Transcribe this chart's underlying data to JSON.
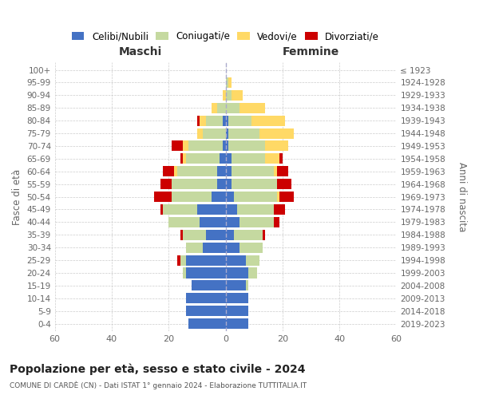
{
  "age_groups": [
    "0-4",
    "5-9",
    "10-14",
    "15-19",
    "20-24",
    "25-29",
    "30-34",
    "35-39",
    "40-44",
    "45-49",
    "50-54",
    "55-59",
    "60-64",
    "65-69",
    "70-74",
    "75-79",
    "80-84",
    "85-89",
    "90-94",
    "95-99",
    "100+"
  ],
  "birth_years": [
    "2019-2023",
    "2014-2018",
    "2009-2013",
    "2004-2008",
    "1999-2003",
    "1994-1998",
    "1989-1993",
    "1984-1988",
    "1979-1983",
    "1974-1978",
    "1969-1973",
    "1964-1968",
    "1959-1963",
    "1954-1958",
    "1949-1953",
    "1944-1948",
    "1939-1943",
    "1934-1938",
    "1929-1933",
    "1924-1928",
    "≤ 1923"
  ],
  "maschi": {
    "celibi": [
      13,
      14,
      14,
      12,
      14,
      14,
      8,
      7,
      9,
      10,
      5,
      3,
      3,
      2,
      1,
      0,
      1,
      0,
      0,
      0,
      0
    ],
    "coniugati": [
      0,
      0,
      0,
      0,
      1,
      2,
      6,
      8,
      11,
      12,
      14,
      16,
      14,
      12,
      12,
      8,
      6,
      3,
      0,
      0,
      0
    ],
    "vedovi": [
      0,
      0,
      0,
      0,
      0,
      0,
      0,
      0,
      0,
      0,
      0,
      0,
      1,
      1,
      2,
      2,
      2,
      2,
      1,
      0,
      0
    ],
    "divorziati": [
      0,
      0,
      0,
      0,
      0,
      1,
      0,
      1,
      0,
      1,
      6,
      4,
      4,
      1,
      4,
      0,
      1,
      0,
      0,
      0,
      0
    ]
  },
  "femmine": {
    "nubili": [
      8,
      8,
      8,
      7,
      8,
      7,
      5,
      3,
      5,
      4,
      3,
      2,
      2,
      2,
      1,
      1,
      1,
      0,
      0,
      0,
      0
    ],
    "coniugate": [
      0,
      0,
      0,
      1,
      3,
      5,
      8,
      10,
      12,
      13,
      15,
      16,
      15,
      12,
      13,
      11,
      8,
      5,
      2,
      1,
      0
    ],
    "vedove": [
      0,
      0,
      0,
      0,
      0,
      0,
      0,
      0,
      0,
      0,
      1,
      0,
      1,
      5,
      8,
      12,
      12,
      9,
      4,
      1,
      0
    ],
    "divorziate": [
      0,
      0,
      0,
      0,
      0,
      0,
      0,
      1,
      2,
      4,
      5,
      5,
      4,
      1,
      0,
      0,
      0,
      0,
      0,
      0,
      0
    ]
  },
  "colors": {
    "celibi": "#4472c4",
    "coniugati": "#c5d9a0",
    "vedovi": "#ffd966",
    "divorziati": "#cc0000"
  },
  "xlim": 60,
  "title_main": "Popolazione per età, sesso e stato civile - 2024",
  "title_sub": "COMUNE DI CARDÈ (CN) - Dati ISTAT 1° gennaio 2024 - Elaborazione TUTTITALIA.IT",
  "xlabel_left": "Maschi",
  "xlabel_right": "Femmine",
  "ylabel_left": "Fasce di età",
  "ylabel_right": "Anni di nascita",
  "legend_labels": [
    "Celibi/Nubili",
    "Coniugati/e",
    "Vedovi/e",
    "Divorziati/e"
  ],
  "background_color": "#ffffff",
  "grid_color": "#cccccc"
}
